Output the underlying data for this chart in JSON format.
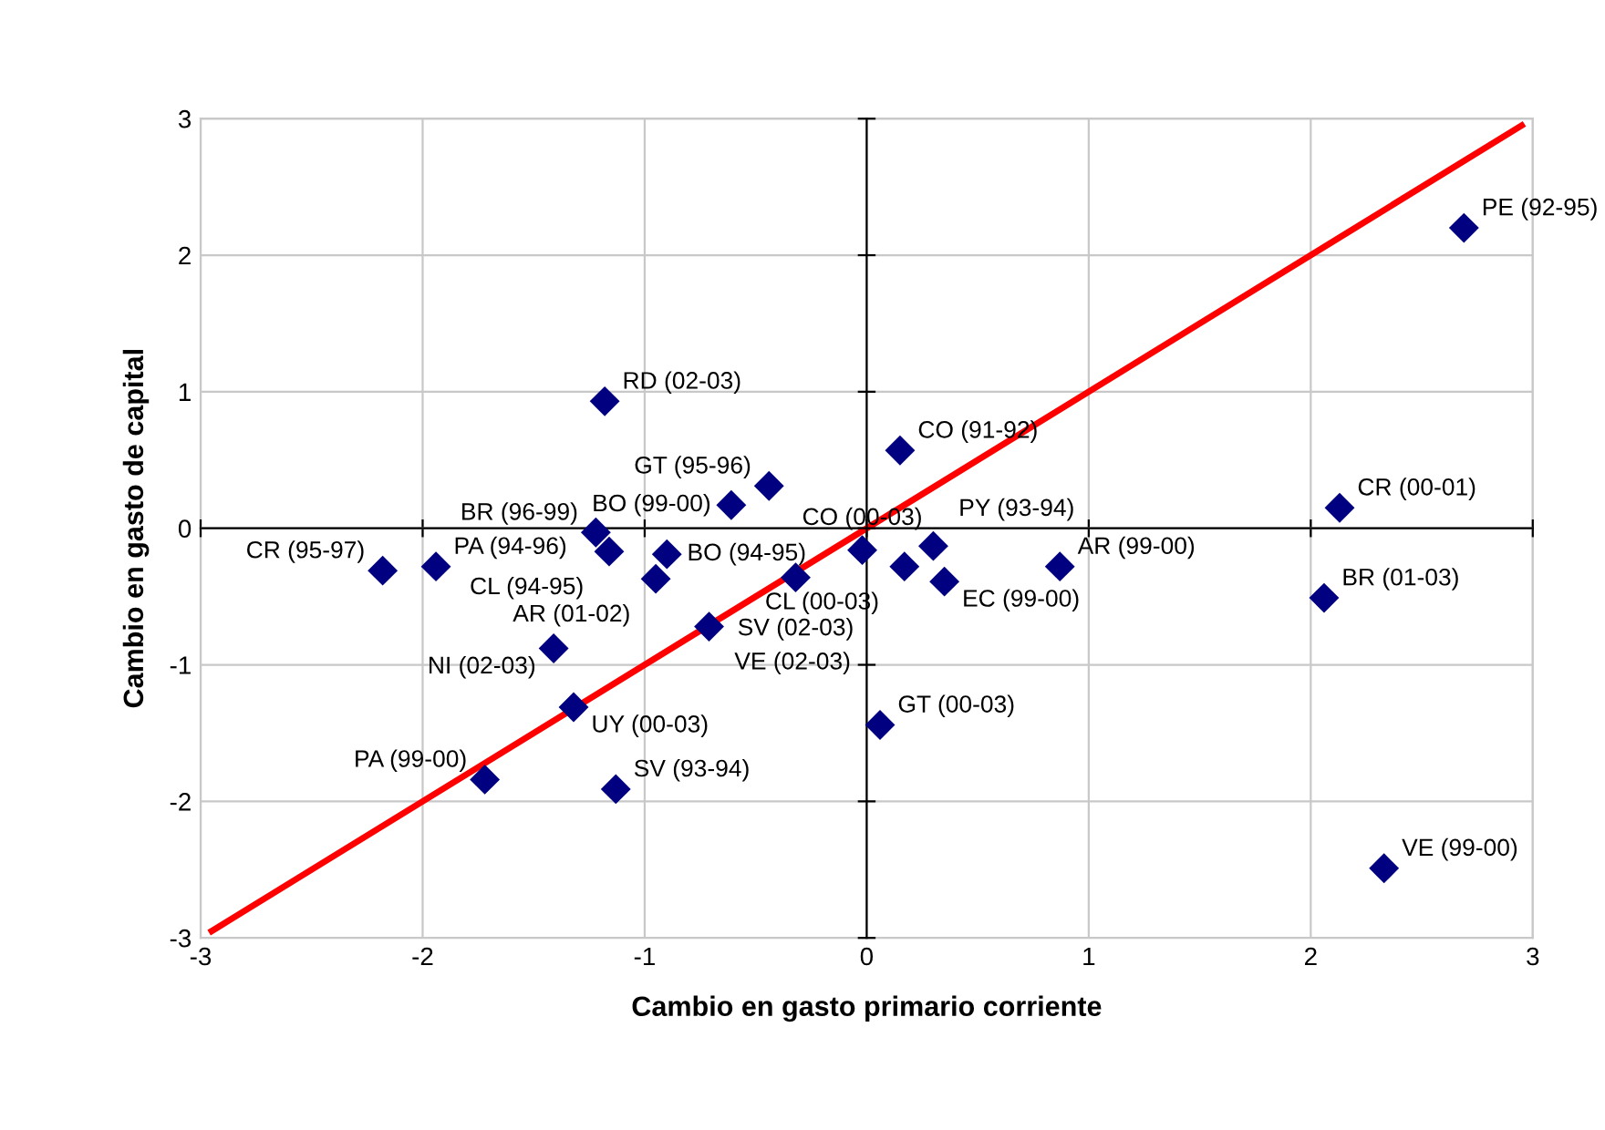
{
  "chart_data": {
    "type": "scatter",
    "xlabel": "Cambio en gasto primario corriente",
    "ylabel": "Cambio en gasto de capital",
    "xlim": [
      -3,
      3
    ],
    "ylim": [
      -3,
      3
    ],
    "xticks": [
      -3,
      -2,
      -1,
      0,
      1,
      2,
      3
    ],
    "yticks": [
      -3,
      -2,
      -1,
      0,
      1,
      2,
      3
    ],
    "grid": true,
    "marker": "diamond",
    "series": [
      {
        "color": "#000080",
        "x": [
          2.69,
          2.13,
          2.06,
          2.33,
          -1.18,
          -0.44,
          -1.22,
          -0.61,
          0.15,
          -1.94,
          -1.16,
          -0.9,
          -0.95,
          -2.18,
          -0.02,
          0.3,
          0.17,
          0.35,
          -0.32,
          0.87,
          -1.41,
          -0.71,
          -1.32,
          -1.72,
          -1.13,
          0.06
        ],
        "values": [
          2.2,
          0.15,
          -0.51,
          -2.49,
          0.93,
          0.31,
          -0.03,
          0.17,
          0.57,
          -0.28,
          -0.17,
          -0.19,
          -0.37,
          -0.31,
          -0.16,
          -0.13,
          -0.28,
          -0.39,
          -0.36,
          -0.28,
          -0.88,
          -0.72,
          -1.31,
          -1.84,
          -1.91,
          -1.44
        ]
      },
      {
        "type": "line",
        "color": "#ff0000",
        "marker": "none",
        "x": [
          -2.95,
          2.95
        ],
        "values": [
          -2.95,
          2.95
        ]
      }
    ],
    "annotations": [
      {
        "text": "PE (92-95)",
        "x": 2.69,
        "y": 2.2
      },
      {
        "text": "CR (00-01)",
        "x": 2.13,
        "y": 0.15
      },
      {
        "text": "BR (01-03)",
        "x": 2.06,
        "y": -0.51
      },
      {
        "text": "VE (99-00)",
        "x": 2.33,
        "y": -2.49
      },
      {
        "text": "RD (02-03)",
        "x": -1.18,
        "y": 0.93
      },
      {
        "text": "GT (95-96)",
        "x": -0.44,
        "y": 0.31
      },
      {
        "text": "BR (96-99)",
        "x": -1.22,
        "y": -0.03
      },
      {
        "text": "BO (99-00)",
        "x": -0.61,
        "y": 0.17
      },
      {
        "text": "CO (91-92)",
        "x": 0.15,
        "y": 0.57
      },
      {
        "text": "PA (94-96)",
        "x": -1.94,
        "y": -0.28
      },
      {
        "text": "CL (94-95)",
        "x": -1.16,
        "y": -0.17
      },
      {
        "text": "BO (94-95)",
        "x": -0.9,
        "y": -0.19
      },
      {
        "text": "AR (01-02)",
        "x": -0.95,
        "y": -0.37
      },
      {
        "text": "CR (95-97)",
        "x": -2.18,
        "y": -0.31
      },
      {
        "text": "CO (00-03)",
        "x": -0.02,
        "y": -0.16
      },
      {
        "text": "PY (93-94)",
        "x": 0.3,
        "y": -0.13
      },
      {
        "text": "CL (00-03)",
        "x": 0.17,
        "y": -0.28
      },
      {
        "text": "EC (99-00)",
        "x": 0.35,
        "y": -0.39
      },
      {
        "text": "SV (02-03)",
        "x": -0.32,
        "y": -0.36
      },
      {
        "text": "AR (99-00)",
        "x": 0.87,
        "y": -0.28
      },
      {
        "text": "NI (02-03)",
        "x": -1.41,
        "y": -0.88
      },
      {
        "text": "VE (02-03)",
        "x": -0.71,
        "y": -0.72
      },
      {
        "text": "UY (00-03)",
        "x": -1.32,
        "y": -1.31
      },
      {
        "text": "PA (99-00)",
        "x": -1.72,
        "y": -1.84
      },
      {
        "text": "SV (93-94)",
        "x": -1.13,
        "y": -1.91
      },
      {
        "text": "GT (00-03)",
        "x": 0.06,
        "y": -1.44
      }
    ]
  }
}
